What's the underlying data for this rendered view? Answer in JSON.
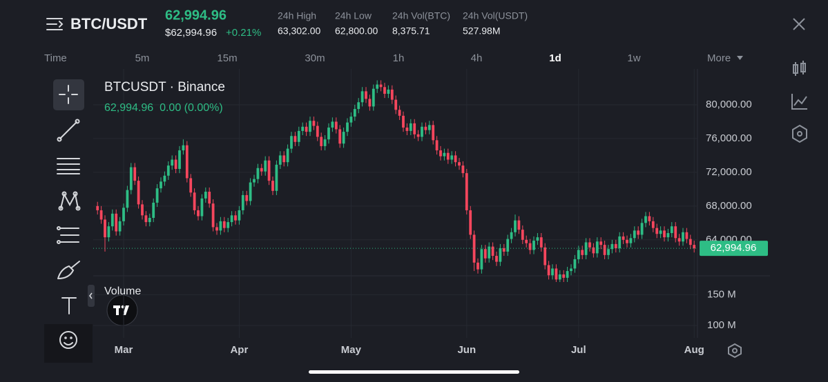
{
  "header": {
    "symbol": "BTC/USDT",
    "price": "62,994.96",
    "price_usd": "$62,994.96",
    "change": "+0.21%",
    "stats": [
      {
        "label": "24h High",
        "value": "63,302.00"
      },
      {
        "label": "24h Low",
        "value": "62,800.00"
      },
      {
        "label": "24h Vol(BTC)",
        "value": "8,375.71"
      },
      {
        "label": "24h Vol(USDT)",
        "value": "527.98M"
      }
    ]
  },
  "timeframes": [
    "Time",
    "5m",
    "15m",
    "30m",
    "1h",
    "4h",
    "1d",
    "1w",
    "More"
  ],
  "active_timeframe": "1d",
  "chart_data": {
    "type": "candlestick",
    "title": "BTCUSDT · Binance",
    "subtitle": "62,994.96  0.00 (0.00%)",
    "up_color": "#2ebd85",
    "down_color": "#f6465d",
    "grid": true,
    "xlim": [
      -7,
      155
    ],
    "xticks": [
      {
        "value": 0,
        "label": "Mar"
      },
      {
        "value": 31,
        "label": "Apr"
      },
      {
        "value": 61,
        "label": "May"
      },
      {
        "value": 92,
        "label": "Jun"
      },
      {
        "value": 122,
        "label": "Jul"
      },
      {
        "value": 153,
        "label": "Aug"
      }
    ],
    "ylim": [
      59000,
      84000
    ],
    "yticks": [
      {
        "value": 64000,
        "label": "64,000.00"
      },
      {
        "value": 68000,
        "label": "68,000.00"
      },
      {
        "value": 72000,
        "label": "72,000.00"
      },
      {
        "value": 76000,
        "label": "76,000.00"
      },
      {
        "value": 80000,
        "label": "80,000.00"
      }
    ],
    "last_price": {
      "value": 62994.96,
      "label": "62,994.96"
    },
    "candles": [
      [
        68000,
        68500,
        67000,
        67500
      ],
      [
        67500,
        68000,
        65900,
        66400
      ],
      [
        66400,
        66900,
        62600,
        64300
      ],
      [
        64300,
        66100,
        63800,
        65600
      ],
      [
        65600,
        67600,
        65100,
        67100
      ],
      [
        67100,
        67600,
        64500,
        65000
      ],
      [
        65000,
        66700,
        64500,
        66200
      ],
      [
        66200,
        68300,
        65700,
        67800
      ],
      [
        67800,
        70400,
        67300,
        69900
      ],
      [
        69900,
        73100,
        69400,
        72600
      ],
      [
        72600,
        73100,
        70500,
        71000
      ],
      [
        71000,
        71500,
        67700,
        68200
      ],
      [
        68200,
        68700,
        66400,
        66900
      ],
      [
        66900,
        67400,
        65600,
        66100
      ],
      [
        66100,
        67100,
        65600,
        66600
      ],
      [
        66600,
        68900,
        66100,
        68400
      ],
      [
        68400,
        70600,
        67900,
        70100
      ],
      [
        70100,
        71400,
        69600,
        70900
      ],
      [
        70900,
        72100,
        70400,
        71600
      ],
      [
        71600,
        73300,
        71100,
        72800
      ],
      [
        72800,
        74000,
        72300,
        73500
      ],
      [
        73500,
        74000,
        71900,
        72400
      ],
      [
        72400,
        75100,
        71900,
        74600
      ],
      [
        74600,
        75900,
        74100,
        75200
      ],
      [
        75200,
        75700,
        70800,
        71300
      ],
      [
        71300,
        71800,
        69100,
        69600
      ],
      [
        69600,
        70100,
        67000,
        67500
      ],
      [
        67500,
        68000,
        66300,
        66800
      ],
      [
        66800,
        69400,
        66300,
        68900
      ],
      [
        68900,
        70200,
        68400,
        69700
      ],
      [
        69700,
        70200,
        67800,
        68300
      ],
      [
        68300,
        68800,
        65000,
        65500
      ],
      [
        65500,
        66000,
        64600,
        65100
      ],
      [
        65100,
        66700,
        64600,
        66200
      ],
      [
        66200,
        66700,
        64900,
        65400
      ],
      [
        65400,
        66600,
        64900,
        66100
      ],
      [
        66100,
        67400,
        65600,
        66900
      ],
      [
        66900,
        67400,
        65800,
        66300
      ],
      [
        66300,
        68000,
        65800,
        67500
      ],
      [
        67500,
        69800,
        67000,
        69300
      ],
      [
        69300,
        69800,
        68100,
        68600
      ],
      [
        68600,
        71300,
        68100,
        70800
      ],
      [
        70800,
        71700,
        70300,
        71200
      ],
      [
        71200,
        73000,
        70700,
        72500
      ],
      [
        72500,
        73000,
        71600,
        72100
      ],
      [
        72100,
        73900,
        71600,
        73400
      ],
      [
        73400,
        73900,
        70500,
        71000
      ],
      [
        71000,
        71500,
        69300,
        69800
      ],
      [
        69800,
        73400,
        69300,
        72900
      ],
      [
        72900,
        74500,
        72400,
        74000
      ],
      [
        74000,
        74500,
        72700,
        73200
      ],
      [
        73200,
        75300,
        72700,
        74800
      ],
      [
        74800,
        76800,
        74300,
        76300
      ],
      [
        76300,
        76800,
        75100,
        75600
      ],
      [
        75600,
        77400,
        75100,
        76900
      ],
      [
        76900,
        77900,
        76400,
        77400
      ],
      [
        77400,
        77900,
        76300,
        76800
      ],
      [
        76800,
        78600,
        76300,
        78100
      ],
      [
        78100,
        78600,
        77000,
        77500
      ],
      [
        77500,
        78000,
        75700,
        76200
      ],
      [
        76200,
        76700,
        74600,
        75100
      ],
      [
        75100,
        76400,
        74600,
        75900
      ],
      [
        75900,
        77800,
        75400,
        77300
      ],
      [
        77300,
        78500,
        76800,
        78000
      ],
      [
        78000,
        78500,
        76600,
        77100
      ],
      [
        77100,
        77600,
        74900,
        75400
      ],
      [
        75400,
        77300,
        74900,
        76800
      ],
      [
        76800,
        78400,
        76300,
        77900
      ],
      [
        77900,
        79100,
        77400,
        78600
      ],
      [
        78600,
        80000,
        78100,
        79500
      ],
      [
        79500,
        80800,
        79000,
        80300
      ],
      [
        80300,
        82100,
        79800,
        81600
      ],
      [
        81600,
        82100,
        80200,
        80700
      ],
      [
        80700,
        81200,
        79300,
        79800
      ],
      [
        79800,
        82400,
        79300,
        81900
      ],
      [
        81900,
        82900,
        81400,
        82400
      ],
      [
        82400,
        82900,
        81600,
        82100
      ],
      [
        82100,
        82600,
        80800,
        81300
      ],
      [
        81300,
        82300,
        80800,
        81800
      ],
      [
        81800,
        82300,
        80100,
        80600
      ],
      [
        80600,
        81100,
        78900,
        79400
      ],
      [
        79400,
        79900,
        78200,
        78700
      ],
      [
        78700,
        79200,
        76800,
        77300
      ],
      [
        77300,
        77800,
        76400,
        76900
      ],
      [
        76900,
        78300,
        76400,
        77800
      ],
      [
        77800,
        78300,
        76000,
        76500
      ],
      [
        76500,
        77000,
        75700,
        76200
      ],
      [
        76200,
        77900,
        75700,
        77400
      ],
      [
        77400,
        77900,
        76500,
        77000
      ],
      [
        77000,
        78100,
        76500,
        77600
      ],
      [
        77600,
        78100,
        75300,
        75800
      ],
      [
        75800,
        76300,
        74100,
        74600
      ],
      [
        74600,
        75100,
        73400,
        73900
      ],
      [
        73900,
        74800,
        73400,
        74300
      ],
      [
        74300,
        74800,
        73000,
        73500
      ],
      [
        73500,
        74500,
        73000,
        74000
      ],
      [
        74000,
        74500,
        72700,
        73200
      ],
      [
        73200,
        73700,
        72300,
        72800
      ],
      [
        72800,
        73300,
        71400,
        71900
      ],
      [
        71900,
        72400,
        67000,
        67500
      ],
      [
        67500,
        68000,
        64100,
        64600
      ],
      [
        64600,
        65100,
        60300,
        61300
      ],
      [
        61300,
        61800,
        60000,
        60500
      ],
      [
        60500,
        63400,
        60000,
        62900
      ],
      [
        62900,
        63400,
        61300,
        61800
      ],
      [
        61800,
        63700,
        61300,
        63200
      ],
      [
        63200,
        63700,
        61600,
        62100
      ],
      [
        62100,
        62600,
        60900,
        61400
      ],
      [
        61400,
        63500,
        60900,
        63000
      ],
      [
        63000,
        63500,
        62100,
        62600
      ],
      [
        62600,
        64600,
        62100,
        64100
      ],
      [
        64100,
        65400,
        63600,
        64900
      ],
      [
        64900,
        67000,
        64400,
        66300
      ],
      [
        66300,
        66800,
        64700,
        65200
      ],
      [
        65200,
        65700,
        63500,
        64000
      ],
      [
        64000,
        64500,
        63100,
        63600
      ],
      [
        63600,
        64100,
        62300,
        62800
      ],
      [
        62800,
        64400,
        62300,
        63900
      ],
      [
        63900,
        64800,
        63400,
        64300
      ],
      [
        64300,
        64800,
        62600,
        63100
      ],
      [
        63100,
        63600,
        60500,
        61000
      ],
      [
        61000,
        61500,
        59300,
        59800
      ],
      [
        59800,
        61100,
        59300,
        60600
      ],
      [
        60600,
        61100,
        59000,
        59300
      ],
      [
        59300,
        60400,
        59000,
        59900
      ],
      [
        59900,
        60400,
        59000,
        59500
      ],
      [
        59500,
        60800,
        59000,
        60300
      ],
      [
        60300,
        61100,
        59800,
        60600
      ],
      [
        60600,
        62200,
        60100,
        61700
      ],
      [
        61700,
        63300,
        61200,
        62800
      ],
      [
        62800,
        63300,
        61700,
        62200
      ],
      [
        62200,
        64200,
        61700,
        63700
      ],
      [
        63700,
        64200,
        62600,
        63100
      ],
      [
        63100,
        63600,
        61900,
        62400
      ],
      [
        62400,
        64300,
        61900,
        63800
      ],
      [
        63800,
        64300,
        62900,
        63400
      ],
      [
        63400,
        63900,
        61700,
        62200
      ],
      [
        62200,
        63400,
        61700,
        62900
      ],
      [
        62900,
        64000,
        62400,
        63500
      ],
      [
        63500,
        64000,
        62500,
        63000
      ],
      [
        63000,
        64900,
        62500,
        64400
      ],
      [
        64400,
        64900,
        63500,
        64000
      ],
      [
        64000,
        64500,
        63100,
        63600
      ],
      [
        63600,
        64700,
        63100,
        64200
      ],
      [
        64200,
        65600,
        63700,
        65100
      ],
      [
        65100,
        65600,
        64100,
        64600
      ],
      [
        64600,
        66500,
        64100,
        66000
      ],
      [
        66000,
        67300,
        65500,
        66800
      ],
      [
        66800,
        67300,
        65700,
        66200
      ],
      [
        66200,
        66700,
        64900,
        65400
      ],
      [
        65400,
        65900,
        64200,
        64700
      ],
      [
        64700,
        65600,
        64200,
        65100
      ],
      [
        65100,
        65600,
        63800,
        64300
      ],
      [
        64300,
        65300,
        63800,
        64800
      ],
      [
        64800,
        66100,
        64300,
        65600
      ],
      [
        65600,
        66100,
        63700,
        64200
      ],
      [
        64200,
        64700,
        63300,
        63800
      ],
      [
        63800,
        65400,
        63300,
        64900
      ],
      [
        64900,
        65400,
        63600,
        64100
      ],
      [
        64100,
        64600,
        62900,
        63400
      ],
      [
        63400,
        63900,
        62500,
        62994.96
      ]
    ],
    "volume": {
      "title": "Volume",
      "ylim": [
        80000000,
        175000000
      ],
      "yticks": [
        {
          "value": 100000000,
          "label": "100 M"
        },
        {
          "value": 150000000,
          "label": "150 M"
        }
      ]
    }
  }
}
